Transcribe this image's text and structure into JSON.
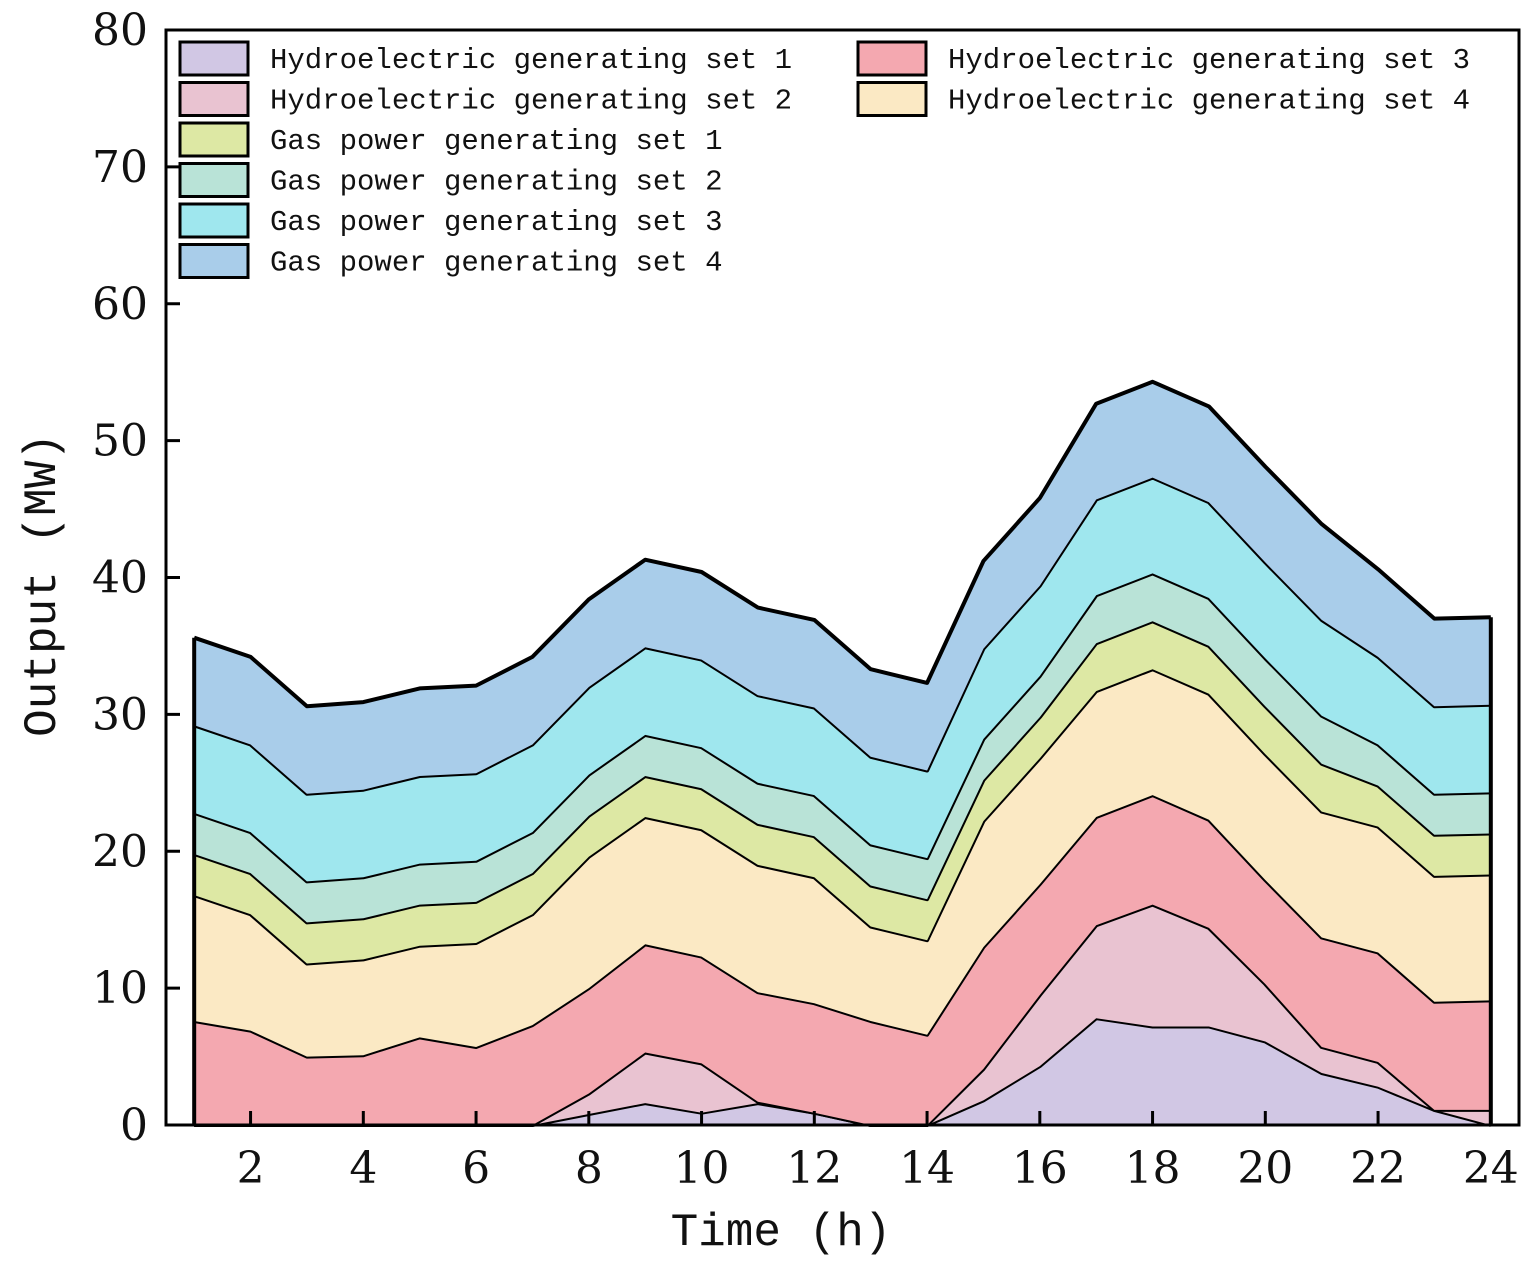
{
  "chart_data": {
    "type": "area",
    "stacked": true,
    "title": "",
    "xlabel": "Time (h)",
    "ylabel": "Output (MW)",
    "xlim": [
      1,
      24
    ],
    "ylim": [
      0,
      80
    ],
    "x_ticks": [
      2,
      4,
      6,
      8,
      10,
      12,
      14,
      16,
      18,
      20,
      22,
      24
    ],
    "y_ticks": [
      0,
      10,
      20,
      30,
      40,
      50,
      60,
      70,
      80
    ],
    "legend_position": "top-left, two columns",
    "x": [
      1,
      2,
      3,
      4,
      5,
      6,
      7,
      8,
      9,
      10,
      11,
      12,
      13,
      14,
      15,
      16,
      17,
      18,
      19,
      20,
      21,
      22,
      23,
      24
    ],
    "series": [
      {
        "name": "Hydroelectric generating set 1",
        "color": "#d1c7e4",
        "values": [
          0,
          0,
          0,
          0,
          0,
          0,
          0,
          0.8,
          1.6,
          0.9,
          1.6,
          0.9,
          0,
          0,
          1.8,
          4.3,
          7.8,
          7.2,
          7.2,
          6.1,
          3.8,
          2.8,
          1.1,
          0
        ]
      },
      {
        "name": "Hydroelectric generating set 2",
        "color": "#e9c3d1",
        "values": [
          0,
          0,
          0,
          0,
          0,
          0,
          0,
          1.5,
          3.7,
          3.6,
          0.1,
          0,
          0,
          0,
          2.3,
          5.2,
          6.8,
          8.9,
          7.2,
          4.2,
          1.9,
          1.8,
          0,
          1.1
        ]
      },
      {
        "name": "Hydroelectric generating set 3",
        "color": "#f4a8b0",
        "values": [
          7.6,
          6.9,
          5.0,
          5.1,
          6.4,
          5.7,
          7.3,
          7.7,
          7.9,
          7.8,
          8.0,
          8.0,
          7.6,
          6.6,
          8.9,
          8.1,
          7.9,
          8.0,
          7.9,
          7.6,
          8.0,
          8.0,
          7.9,
          8.0
        ]
      },
      {
        "name": "Hydroelectric generating set 4",
        "color": "#fbe9c4",
        "values": [
          9.2,
          8.5,
          6.8,
          7.0,
          6.7,
          7.6,
          8.1,
          9.6,
          9.3,
          9.3,
          9.3,
          9.2,
          6.9,
          6.9,
          9.2,
          9.2,
          9.2,
          9.2,
          9.2,
          9.2,
          9.2,
          9.2,
          9.2,
          9.2
        ]
      },
      {
        "name": "Gas power generating set 1",
        "color": "#dde8a4",
        "values": [
          3.0,
          3.0,
          3.0,
          3.0,
          3.0,
          3.0,
          3.0,
          3.0,
          3.0,
          3.0,
          3.0,
          3.0,
          3.0,
          3.0,
          3.0,
          3.0,
          3.5,
          3.5,
          3.5,
          3.5,
          3.5,
          3.0,
          3.0,
          3.0
        ]
      },
      {
        "name": "Gas power generating set 2",
        "color": "#b9e3d7",
        "values": [
          3.0,
          3.0,
          3.0,
          3.0,
          3.0,
          3.0,
          3.0,
          3.0,
          3.0,
          3.0,
          3.0,
          3.0,
          3.0,
          3.0,
          3.0,
          3.0,
          3.5,
          3.5,
          3.5,
          3.5,
          3.5,
          3.0,
          3.0,
          3.0
        ]
      },
      {
        "name": "Gas power generating set 3",
        "color": "#9fe7ee",
        "values": [
          6.4,
          6.4,
          6.4,
          6.4,
          6.4,
          6.4,
          6.4,
          6.4,
          6.4,
          6.4,
          6.4,
          6.4,
          6.4,
          6.4,
          6.6,
          6.6,
          7.0,
          7.0,
          7.0,
          7.0,
          7.0,
          6.4,
          6.4,
          6.4
        ]
      },
      {
        "name": "Gas power generating set 4",
        "color": "#a9cdea",
        "values": [
          6.4,
          6.4,
          6.4,
          6.4,
          6.4,
          6.4,
          6.4,
          6.4,
          6.4,
          6.4,
          6.4,
          6.4,
          6.4,
          6.4,
          6.4,
          6.4,
          7.0,
          7.0,
          7.0,
          7.0,
          7.0,
          6.4,
          6.4,
          6.4
        ]
      }
    ]
  }
}
